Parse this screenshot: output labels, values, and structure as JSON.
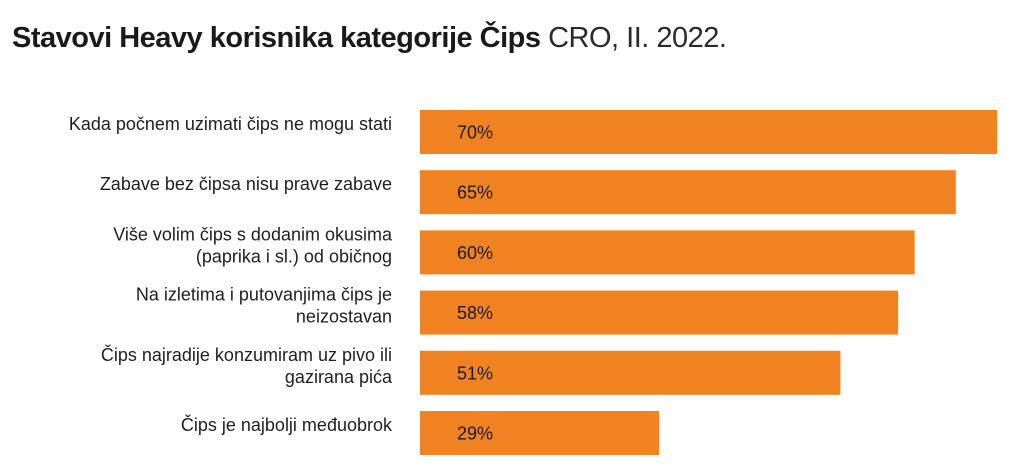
{
  "header": {
    "title_bold": "Stavovi Heavy korisnika kategorije Čips",
    "title_light": " CRO, II. 2022."
  },
  "colors": {
    "bar": "#F08221"
  },
  "chart_data": {
    "type": "bar",
    "orientation": "horizontal",
    "title": "Stavovi Heavy korisnika kategorije Čips CRO, II. 2022.",
    "xlabel": "",
    "ylabel": "",
    "xlim": [
      0,
      70
    ],
    "grid": false,
    "legend": "none",
    "unit": "%",
    "categories": [
      [
        "Kada počnem uzimati čips ne mogu stati"
      ],
      [
        "Zabave bez čipsa nisu prave zabave"
      ],
      [
        "Više volim čips s dodanim okusima",
        "(paprika i sl.) od običnog"
      ],
      [
        "Na izletima i putovanjima čips je",
        "neizostavan"
      ],
      [
        "Čips najradije konzumiram uz pivo ili",
        "gazirana pića"
      ],
      [
        "Čips je najbolji međuobrok"
      ]
    ],
    "values": [
      70,
      65,
      60,
      58,
      51,
      29
    ],
    "value_labels": [
      "70%",
      "65%",
      "60%",
      "58%",
      "51%",
      "29%"
    ]
  }
}
